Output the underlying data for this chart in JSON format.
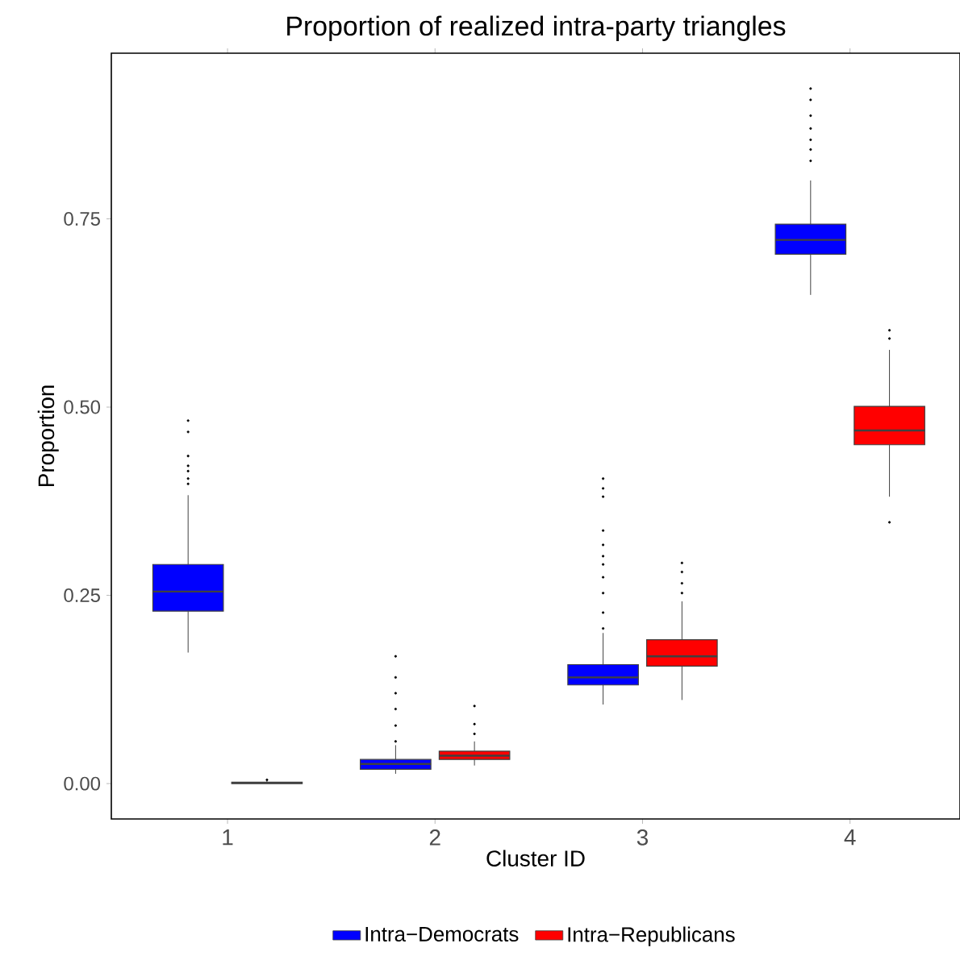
{
  "chart_data": {
    "type": "box",
    "title": "Proportion of realized intra-party triangles",
    "xlabel": "Cluster ID",
    "ylabel": "Proportion",
    "categories": [
      "1",
      "2",
      "3",
      "4"
    ],
    "ylim": [
      -0.047,
      0.97
    ],
    "yticks": [
      {
        "value": 0,
        "label": "0.00"
      },
      {
        "value": 0.25,
        "label": "0.25"
      },
      {
        "value": 0.5,
        "label": "0.50"
      },
      {
        "value": 0.75,
        "label": "0.75"
      }
    ],
    "grid": false,
    "legend": "bottom",
    "series": [
      {
        "name": "Intra−Democrats",
        "color": "#0000ff",
        "boxes": [
          {
            "low": 0.174,
            "q1": 0.229,
            "median": 0.255,
            "q3": 0.291,
            "high": 0.383,
            "outliers": [
              0.482,
              0.467,
              0.435,
              0.422,
              0.415,
              0.405,
              0.398
            ]
          },
          {
            "low": 0.013,
            "q1": 0.019,
            "median": 0.026,
            "q3": 0.032,
            "high": 0.051,
            "outliers": [
              0.169,
              0.141,
              0.12,
              0.099,
              0.077,
              0.056
            ]
          },
          {
            "low": 0.105,
            "q1": 0.131,
            "median": 0.141,
            "q3": 0.158,
            "high": 0.2,
            "outliers": [
              0.405,
              0.392,
              0.381,
              0.336,
              0.317,
              0.302,
              0.291,
              0.274,
              0.253,
              0.227,
              0.206
            ]
          },
          {
            "low": 0.649,
            "q1": 0.703,
            "median": 0.722,
            "q3": 0.743,
            "high": 0.801,
            "outliers": [
              0.923,
              0.908,
              0.887,
              0.87,
              0.855,
              0.842,
              0.827
            ]
          }
        ]
      },
      {
        "name": "Intra−Republicans",
        "color": "#ff0000",
        "boxes": [
          {
            "low": 0.0,
            "q1": 0.0,
            "median": 0.001,
            "q3": 0.002,
            "high": 0.004,
            "outliers": [
              0.005
            ]
          },
          {
            "low": 0.024,
            "q1": 0.032,
            "median": 0.037,
            "q3": 0.043,
            "high": 0.056,
            "outliers": [
              0.103,
              0.079,
              0.066
            ]
          },
          {
            "low": 0.111,
            "q1": 0.156,
            "median": 0.169,
            "q3": 0.191,
            "high": 0.242,
            "outliers": [
              0.293,
              0.281,
              0.266,
              0.253
            ]
          },
          {
            "low": 0.381,
            "q1": 0.45,
            "median": 0.469,
            "q3": 0.501,
            "high": 0.576,
            "outliers": [
              0.602,
              0.591,
              0.347
            ]
          }
        ]
      }
    ]
  }
}
